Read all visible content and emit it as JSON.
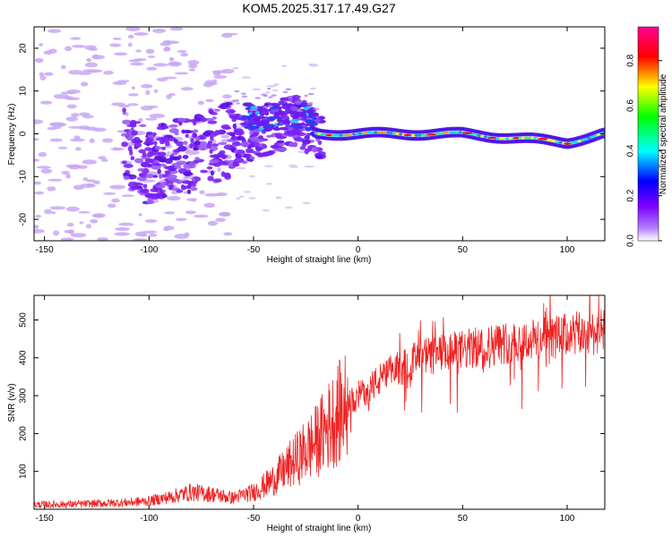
{
  "chart_data": [
    {
      "type": "heatmap",
      "title": "KOM5.2025.317.17.49.G27",
      "xlabel": "Height of straight line (km)",
      "ylabel": "Frequency (Hz)",
      "xlim": [
        -155,
        118
      ],
      "ylim": [
        -25,
        25
      ],
      "xticks": [
        -150,
        -100,
        -50,
        0,
        50,
        100
      ],
      "yticks": [
        -20,
        -10,
        0,
        10,
        20
      ],
      "colorbar": {
        "label": "Normalized spectral amplitude",
        "range": [
          0,
          0.95
        ],
        "ticks": [
          0.0,
          0.2,
          0.4,
          0.6,
          0.8
        ],
        "colors": [
          "#ffffff",
          "#7f00ff",
          "#0000ff",
          "#00ffff",
          "#00ff00",
          "#ffff00",
          "#ff0000",
          "#ff0080"
        ]
      },
      "description_points": {
        "trend": [
          [
            -150,
            15
          ],
          [
            -100,
            -8
          ],
          [
            -75,
            -4
          ],
          [
            -50,
            0
          ],
          [
            -30,
            3
          ],
          [
            -20,
            0
          ],
          [
            0,
            0
          ],
          [
            50,
            0
          ],
          [
            100,
            -2
          ],
          [
            118,
            0
          ]
        ]
      }
    },
    {
      "type": "line",
      "title": "",
      "xlabel": "Height of straight line (km)",
      "ylabel": "SNR (v/v)",
      "xlim": [
        -155,
        118
      ],
      "ylim": [
        0,
        565
      ],
      "xticks": [
        -150,
        -100,
        -50,
        0,
        50,
        100
      ],
      "yticks": [
        100,
        200,
        300,
        400,
        500
      ],
      "color": "#ee2222",
      "envelope": {
        "x": [
          -155,
          -130,
          -110,
          -100,
          -90,
          -80,
          -70,
          -60,
          -50,
          -40,
          -30,
          -20,
          -10,
          0,
          10,
          20,
          30,
          40,
          50,
          60,
          70,
          80,
          90,
          100,
          110,
          118
        ],
        "y": [
          12,
          14,
          18,
          22,
          32,
          45,
          40,
          30,
          45,
          80,
          130,
          180,
          250,
          300,
          340,
          375,
          400,
          410,
          420,
          430,
          440,
          445,
          450,
          460,
          465,
          470
        ]
      }
    }
  ]
}
